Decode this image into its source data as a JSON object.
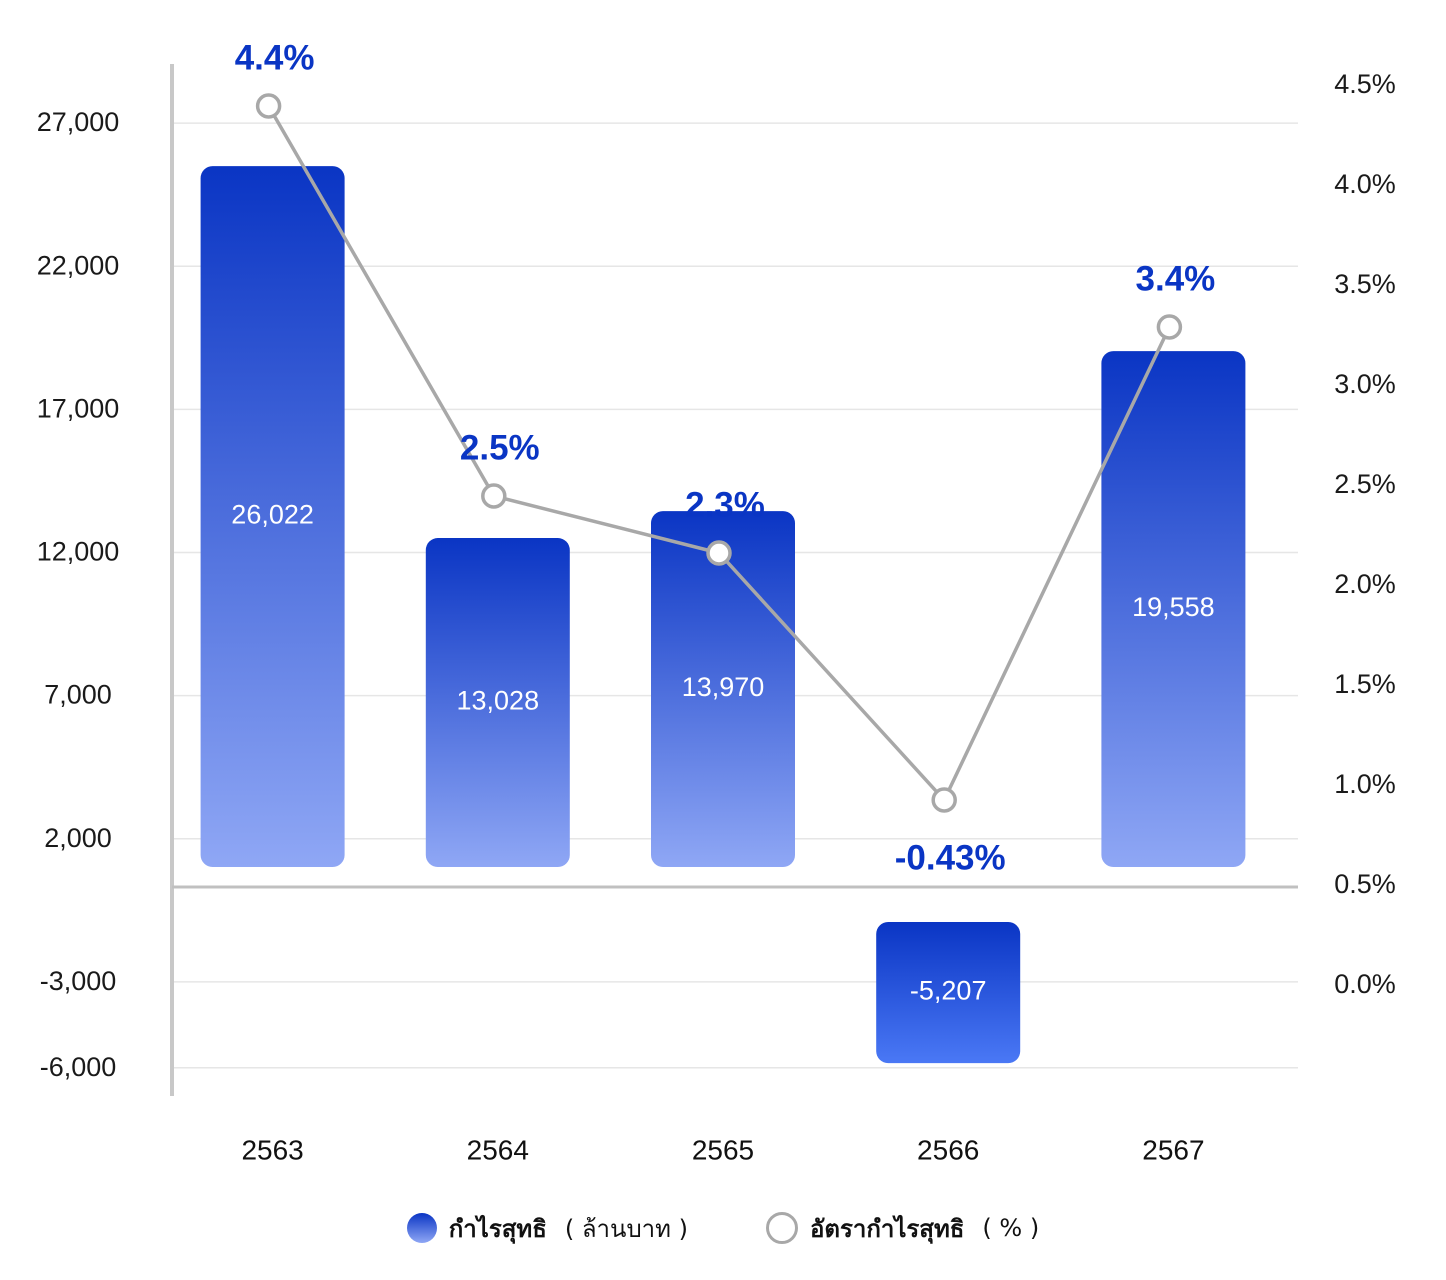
{
  "chart_data": {
    "type": "bar",
    "categories": [
      "2563",
      "2564",
      "2565",
      "2566",
      "2567"
    ],
    "series": [
      {
        "name": "กำไรสุทธิ",
        "unit": "( ล้านบาท )",
        "type": "bar",
        "axis": "left",
        "values": [
          26022,
          13028,
          13970,
          -5207,
          19558
        ],
        "labels": [
          "26,022",
          "13,028",
          "13,970",
          "-5,207",
          "19,558"
        ]
      },
      {
        "name": "อัตรากำไรสุทธิ",
        "unit": "( % )",
        "type": "line",
        "axis": "right",
        "values": [
          4.4,
          2.5,
          2.3,
          -0.43,
          3.4
        ],
        "labels": [
          "4.4%",
          "2.5%",
          "2.3%",
          "-0.43%",
          "3.4%"
        ]
      }
    ],
    "y_left": {
      "ticks": [
        27000,
        22000,
        17000,
        12000,
        7000,
        2000,
        -3000,
        -6000
      ],
      "tick_labels": [
        "27,000",
        "22,000",
        "17,000",
        "12,000",
        "7,000",
        "2,000",
        "-3,000",
        "-6,000"
      ]
    },
    "y_right": {
      "ticks": [
        4.5,
        4.0,
        3.5,
        3.0,
        2.5,
        2.0,
        1.5,
        1.0,
        0.5,
        0.0
      ],
      "tick_labels": [
        "4.5%",
        "4.0%",
        "3.5%",
        "3.0%",
        "2.5%",
        "2.0%",
        "1.5%",
        "1.0%",
        "0.5%",
        "0.0%"
      ]
    },
    "grid": true,
    "legend_position": "bottom-center",
    "colors": {
      "bar_top": "#0a35c4",
      "bar_bottom": "#8fa7f5",
      "bar_negative_bottom": "#4a78f5",
      "line": "#a8a8a8",
      "rate_label": "#0a35c4"
    }
  }
}
